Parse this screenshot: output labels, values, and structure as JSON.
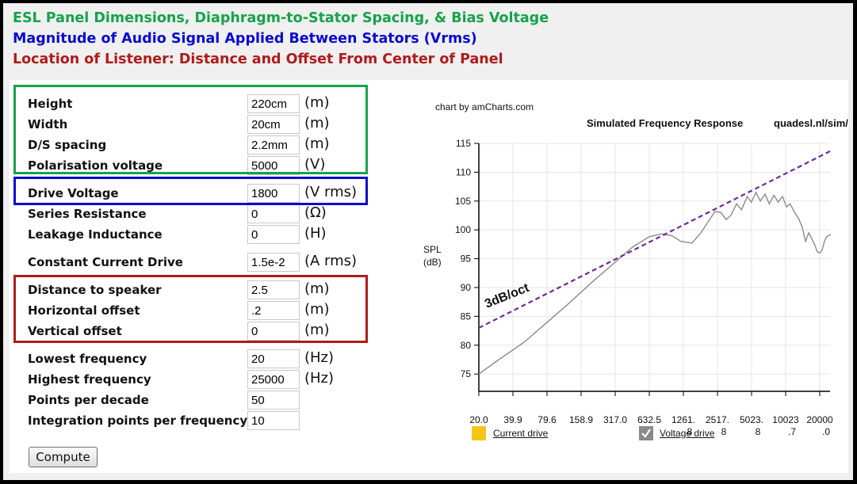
{
  "headings": {
    "line1": "ESL Panel Dimensions, Diaphragm-to-Stator Spacing, & Bias Voltage",
    "line2": "Magnitude of Audio Signal Applied Between Stators (Vrms)",
    "line3": "Location of Listener: Distance and Offset From Center of Panel"
  },
  "colors": {
    "green": "#16a34a",
    "blue": "#0a0ad2",
    "red": "#b01b1b",
    "trend": "#6b2a9e",
    "current_drive": "#f5c518",
    "voltage_drive": "#8a8a8a"
  },
  "form": {
    "rows": [
      {
        "label": "Height",
        "value": "220cm",
        "unit": "(m)"
      },
      {
        "label": "Width",
        "value": "20cm",
        "unit": "(m)"
      },
      {
        "label": "D/S spacing",
        "value": "2.2mm",
        "unit": "(m)"
      },
      {
        "label": "Polarisation voltage",
        "value": "5000",
        "unit": "(V)"
      },
      {
        "label": "Drive Voltage",
        "value": "1800",
        "unit": "(V rms)"
      },
      {
        "label": "Series Resistance",
        "value": "0",
        "unit": "(Ω)"
      },
      {
        "label": "Leakage Inductance",
        "value": "0",
        "unit": "(H)"
      },
      {
        "label": "Constant Current Drive",
        "value": "1.5e-2",
        "unit": "(A rms)"
      },
      {
        "label": "Distance to speaker",
        "value": "2.5",
        "unit": "(m)"
      },
      {
        "label": "Horizontal offset",
        "value": ".2",
        "unit": "(m)"
      },
      {
        "label": "Vertical offset",
        "value": "0",
        "unit": "(m)"
      },
      {
        "label": "Lowest frequency",
        "value": "20",
        "unit": "(Hz)"
      },
      {
        "label": "Highest frequency",
        "value": "25000",
        "unit": "(Hz)"
      },
      {
        "label": "Points per decade",
        "value": "50",
        "unit": ""
      },
      {
        "label": "Integration points per frequency",
        "value": "10",
        "unit": ""
      }
    ],
    "compute_label": "Compute"
  },
  "chart_credit": "chart by amCharts.com",
  "chart_data": {
    "type": "line",
    "title": "Simulated Frequency Response",
    "subtitle": "quadesl.nl/sim/",
    "ylabel": [
      "SPL",
      "(dB)"
    ],
    "xlabel": "",
    "x_scale": "log",
    "xlim": [
      20,
      25000
    ],
    "ylim": [
      72,
      115
    ],
    "y_ticks": [
      75,
      80,
      85,
      90,
      95,
      100,
      105,
      110,
      115
    ],
    "x_tick_labels": [
      [
        "20.0"
      ],
      [
        "39.9"
      ],
      [
        "79.6"
      ],
      [
        "158.9"
      ],
      [
        "317.0"
      ],
      [
        "632.5"
      ],
      [
        "1261.",
        "8"
      ],
      [
        "2517.",
        "8"
      ],
      [
        "5023.",
        "8"
      ],
      [
        "10023",
        ".7"
      ],
      [
        "20000",
        ".0"
      ]
    ],
    "x_tick_values": [
      20,
      39.9,
      79.6,
      158.9,
      317.0,
      632.5,
      1261.8,
      2517.8,
      5023.8,
      10023.7,
      20000
    ],
    "grid": true,
    "legend_position": "bottom",
    "series": [
      {
        "name": "Current drive",
        "values": []
      },
      {
        "name": "Voltage drive",
        "x": [
          20,
          30,
          50,
          80,
          120,
          200,
          300,
          450,
          630,
          800,
          1000,
          1200,
          1500,
          1800,
          2100,
          2400,
          2700,
          3000,
          3300,
          3700,
          4100,
          4600,
          5000,
          5500,
          6000,
          6600,
          7200,
          7900,
          8600,
          9400,
          10200,
          11000,
          12000,
          13000,
          14000,
          15000,
          16000,
          17000,
          18000,
          19000,
          20000,
          21000,
          22000,
          23000,
          25000
        ],
        "values": [
          75.0,
          77.5,
          80.5,
          84.0,
          87.0,
          91.0,
          94.0,
          97.0,
          98.8,
          99.3,
          99.0,
          98.0,
          97.7,
          99.5,
          101.5,
          103.2,
          103.0,
          101.8,
          102.5,
          104.5,
          103.5,
          105.8,
          104.8,
          106.5,
          105.0,
          106.2,
          104.5,
          106.0,
          104.8,
          105.8,
          104.0,
          104.5,
          103.0,
          102.0,
          100.5,
          98.0,
          99.5,
          98.5,
          97.5,
          96.2,
          96.0,
          96.5,
          98.0,
          98.8,
          99.2
        ]
      }
    ],
    "trend_line": {
      "label": "3dB/oct",
      "x": [
        20,
        25000
      ],
      "y": [
        83.0,
        113.7
      ]
    }
  }
}
